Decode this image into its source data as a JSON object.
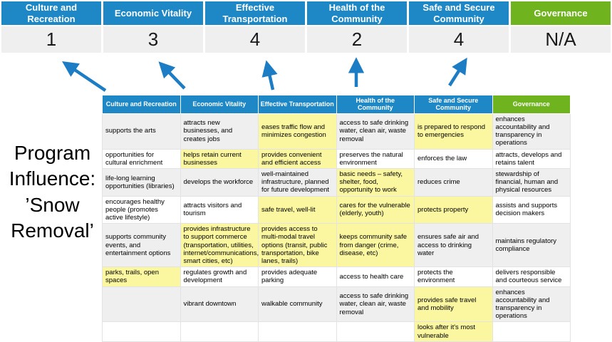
{
  "program": {
    "lines": [
      "Program",
      "Influence:",
      "’Snow",
      "Removal’"
    ]
  },
  "summary": {
    "columns": [
      {
        "label": "Culture and Recreation",
        "score": "1",
        "theme": "blue"
      },
      {
        "label": "Economic Vitality",
        "score": "3",
        "theme": "blue"
      },
      {
        "label": "Effective Transportation",
        "score": "4",
        "theme": "blue"
      },
      {
        "label": "Health of the Community",
        "score": "2",
        "theme": "blue"
      },
      {
        "label": "Safe and Secure Community",
        "score": "4",
        "theme": "blue"
      },
      {
        "label": "Governance",
        "score": "N/A",
        "theme": "green"
      }
    ]
  },
  "matrix": {
    "headers": [
      {
        "label": "Culture and Recreation",
        "theme": "blue"
      },
      {
        "label": "Economic Vitality",
        "theme": "blue"
      },
      {
        "label": "Effective Transportation",
        "theme": "blue"
      },
      {
        "label": "Health of the Community",
        "theme": "blue"
      },
      {
        "label": "Safe and Secure Community",
        "theme": "blue"
      },
      {
        "label": "Governance",
        "theme": "green"
      }
    ],
    "rows": [
      [
        {
          "t": "supports the arts",
          "h": false
        },
        {
          "t": "attracts new businesses, and creates jobs",
          "h": false
        },
        {
          "t": "eases traffic flow and minimizes congestion",
          "h": true
        },
        {
          "t": "access to safe drinking water, clean air, waste removal",
          "h": false
        },
        {
          "t": "is prepared to respond to emergencies",
          "h": true
        },
        {
          "t": "enhances accountability and transparency in operations",
          "h": false
        }
      ],
      [
        {
          "t": "opportunities for cultural enrichment",
          "h": false
        },
        {
          "t": "helps retain current businesses",
          "h": true
        },
        {
          "t": "provides convenient and efficient access",
          "h": true
        },
        {
          "t": "preserves the natural environment",
          "h": false
        },
        {
          "t": "enforces the law",
          "h": false
        },
        {
          "t": "attracts, develops and retains talent",
          "h": false
        }
      ],
      [
        {
          "t": "life-long learning opportunities (libraries)",
          "h": false
        },
        {
          "t": "develops the workforce",
          "h": false
        },
        {
          "t": "well-maintained infrastructure, planned for future development",
          "h": false
        },
        {
          "t": "basic needs – safety, shelter, food, opportunity to work",
          "h": true
        },
        {
          "t": "reduces crime",
          "h": false
        },
        {
          "t": "stewardship of financial, human and physical resources",
          "h": false
        }
      ],
      [
        {
          "t": "encourages healthy people (promotes active lifestyle)",
          "h": false
        },
        {
          "t": "attracts visitors and tourism",
          "h": false
        },
        {
          "t": "safe travel, well-lit",
          "h": true
        },
        {
          "t": "cares for the vulnerable (elderly, youth)",
          "h": true
        },
        {
          "t": "protects property",
          "h": true
        },
        {
          "t": "assists and supports decision makers",
          "h": false
        }
      ],
      [
        {
          "t": "supports community events, and entertainment options",
          "h": false
        },
        {
          "t": "provides infrastructure to support commerce (transportation, utilities, internet/communications, smart cities, etc)",
          "h": true
        },
        {
          "t": "provides access to multi-modal travel options (transit, public transportation, bike lanes, trails)",
          "h": true
        },
        {
          "t": "keeps community safe from danger (crime, disease, etc)",
          "h": true
        },
        {
          "t": "ensures safe air and access to drinking water",
          "h": false
        },
        {
          "t": "maintains regulatory compliance",
          "h": false
        }
      ],
      [
        {
          "t": "parks, trails, open spaces",
          "h": true
        },
        {
          "t": "regulates growth and development",
          "h": false
        },
        {
          "t": "provides adequate parking",
          "h": false
        },
        {
          "t": "access to health care",
          "h": false
        },
        {
          "t": "protects the environment",
          "h": false
        },
        {
          "t": "delivers responsible and courteous service",
          "h": false
        }
      ],
      [
        {
          "t": "",
          "h": false
        },
        {
          "t": "vibrant downtown",
          "h": false
        },
        {
          "t": "walkable community",
          "h": false
        },
        {
          "t": "access to safe drinking water, clean air, waste removal",
          "h": false
        },
        {
          "t": "provides safe travel and mobility",
          "h": true
        },
        {
          "t": "enhances accountability and transparency in operations",
          "h": false
        }
      ],
      [
        {
          "t": "",
          "h": false
        },
        {
          "t": "",
          "h": false
        },
        {
          "t": "",
          "h": false
        },
        {
          "t": "",
          "h": false
        },
        {
          "t": "looks after it's most vulnerable",
          "h": true
        },
        {
          "t": "",
          "h": false
        }
      ]
    ]
  },
  "colors": {
    "blue": "#1E87C6",
    "green": "#6FB41E",
    "highlight": "#FBF7A0",
    "band": "#EFEFEF",
    "arrow": "#1C7CC4"
  }
}
